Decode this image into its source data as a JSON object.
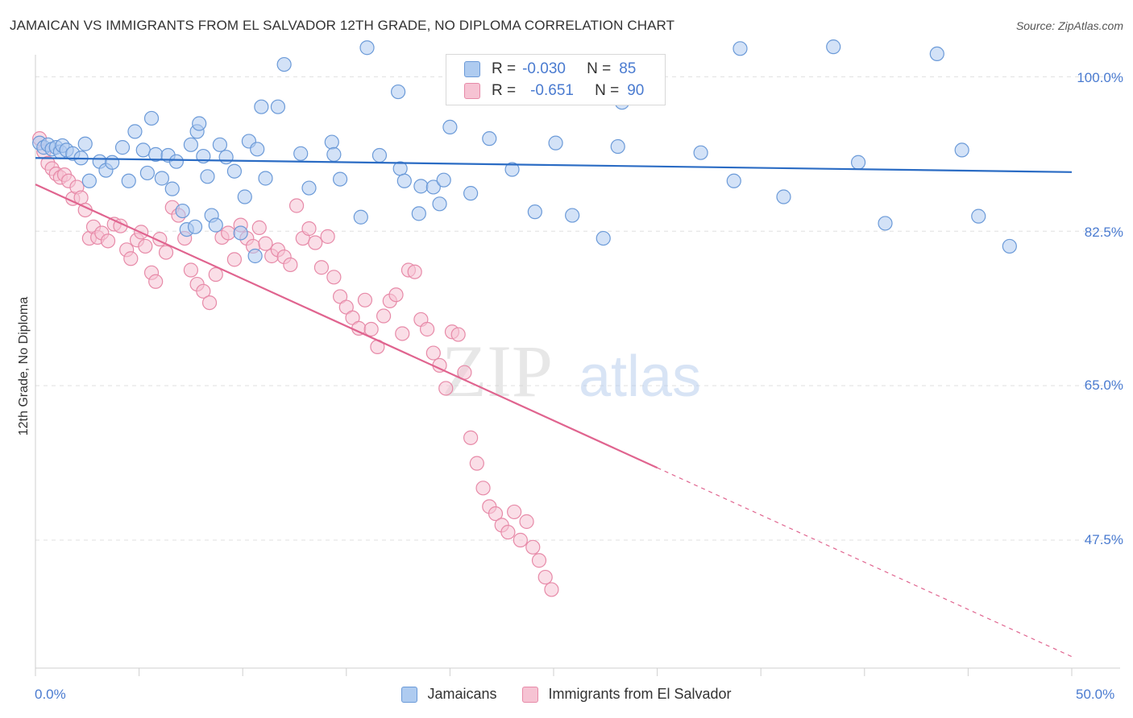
{
  "title": "JAMAICAN VS IMMIGRANTS FROM EL SALVADOR 12TH GRADE, NO DIPLOMA CORRELATION CHART",
  "source": "Source: ZipAtlas.com",
  "watermark": {
    "zip": "ZIP",
    "atlas": "atlas"
  },
  "legend": {
    "rows": [
      {
        "r_label": "R =",
        "r_value": "-0.030",
        "n_label": "N =",
        "n_value": "85"
      },
      {
        "r_label": "R =",
        "r_value": "-0.651",
        "n_label": "N =",
        "n_value": "90"
      }
    ]
  },
  "colors": {
    "blue_fill": "#aecbf0",
    "blue_stroke": "#6b9ad8",
    "blue_line": "#2b6cc4",
    "pink_fill": "#f6c3d3",
    "pink_stroke": "#e78aa8",
    "pink_line": "#e0648f",
    "grid": "#e0e0e0",
    "axis_text": "#4a7bd0"
  },
  "chart_data": {
    "type": "scatter",
    "title": "JAMAICAN VS IMMIGRANTS FROM EL SALVADOR 12TH GRADE, NO DIPLOMA CORRELATION CHART",
    "xlabel": "",
    "ylabel": "12th Grade, No Diploma",
    "xlim": [
      0,
      50
    ],
    "ylim": [
      33,
      102.5
    ],
    "x_tick_labels": [
      "0.0%",
      "50.0%"
    ],
    "y_ticks": [
      100,
      82.5,
      65,
      47.5
    ],
    "y_tick_labels": [
      "100.0%",
      "82.5%",
      "65.0%",
      "47.5%"
    ],
    "grid": true,
    "legend_position": "top-center",
    "series": [
      {
        "name": "Jamaicans",
        "r": -0.03,
        "n": 85,
        "trend": {
          "x": [
            0,
            50
          ],
          "y": [
            90.8,
            89.2
          ],
          "dashed_from": null
        },
        "points": [
          [
            0.2,
            92.5
          ],
          [
            0.4,
            92
          ],
          [
            0.6,
            92.3
          ],
          [
            0.8,
            91.8
          ],
          [
            1.0,
            92
          ],
          [
            1.2,
            91.5
          ],
          [
            1.3,
            92.2
          ],
          [
            1.5,
            91.7
          ],
          [
            1.8,
            91.3
          ],
          [
            2.2,
            90.8
          ],
          [
            2.4,
            92.4
          ],
          [
            2.6,
            88.2
          ],
          [
            3.1,
            90.4
          ],
          [
            3.4,
            89.4
          ],
          [
            3.7,
            90.3
          ],
          [
            4.2,
            92
          ],
          [
            4.5,
            88.2
          ],
          [
            4.8,
            93.8
          ],
          [
            5.2,
            91.7
          ],
          [
            5.4,
            89.1
          ],
          [
            5.6,
            95.3
          ],
          [
            5.8,
            91.2
          ],
          [
            6.1,
            88.5
          ],
          [
            6.4,
            91.1
          ],
          [
            6.6,
            87.3
          ],
          [
            6.8,
            90.4
          ],
          [
            7.1,
            84.8
          ],
          [
            7.3,
            82.7
          ],
          [
            7.5,
            92.3
          ],
          [
            7.7,
            83
          ],
          [
            7.8,
            93.8
          ],
          [
            7.9,
            94.7
          ],
          [
            8.1,
            91
          ],
          [
            8.3,
            88.7
          ],
          [
            8.5,
            84.3
          ],
          [
            8.7,
            83.2
          ],
          [
            8.9,
            92.3
          ],
          [
            9.2,
            90.9
          ],
          [
            9.6,
            89.3
          ],
          [
            9.9,
            82.3
          ],
          [
            10.1,
            86.4
          ],
          [
            10.3,
            92.7
          ],
          [
            10.6,
            79.7
          ],
          [
            10.7,
            91.8
          ],
          [
            10.9,
            96.6
          ],
          [
            11.1,
            88.5
          ],
          [
            11.7,
            96.6
          ],
          [
            12.0,
            101.4
          ],
          [
            12.8,
            91.3
          ],
          [
            13.2,
            87.4
          ],
          [
            14.3,
            92.6
          ],
          [
            14.4,
            91.2
          ],
          [
            14.7,
            88.4
          ],
          [
            15.7,
            84.1
          ],
          [
            16.0,
            103.3
          ],
          [
            16.6,
            91.1
          ],
          [
            17.5,
            98.3
          ],
          [
            17.6,
            89.6
          ],
          [
            17.8,
            88.2
          ],
          [
            18.5,
            84.5
          ],
          [
            18.6,
            87.6
          ],
          [
            19.2,
            87.5
          ],
          [
            19.5,
            85.6
          ],
          [
            19.7,
            88.3
          ],
          [
            20.0,
            94.3
          ],
          [
            21.0,
            86.8
          ],
          [
            21.9,
            93
          ],
          [
            23.0,
            89.5
          ],
          [
            24.1,
            84.7
          ],
          [
            25.1,
            92.5
          ],
          [
            25.9,
            84.3
          ],
          [
            27.4,
            81.7
          ],
          [
            28.1,
            92.1
          ],
          [
            28.3,
            97.1
          ],
          [
            32.1,
            91.4
          ],
          [
            33.7,
            88.2
          ],
          [
            34.0,
            103.2
          ],
          [
            36.1,
            86.4
          ],
          [
            38.5,
            103.4
          ],
          [
            39.7,
            90.3
          ],
          [
            41.0,
            83.4
          ],
          [
            43.5,
            102.6
          ],
          [
            44.7,
            91.7
          ],
          [
            45.5,
            84.2
          ],
          [
            47.0,
            80.8
          ]
        ]
      },
      {
        "name": "Immigrants from El Salvador",
        "r": -0.651,
        "n": 90,
        "trend": {
          "x": [
            0,
            50
          ],
          "y": [
            87.8,
            34.3
          ],
          "dashed_from": 30
        },
        "points": [
          [
            0.2,
            93
          ],
          [
            0.4,
            91.5
          ],
          [
            0.6,
            90.2
          ],
          [
            0.8,
            89.6
          ],
          [
            1.0,
            89
          ],
          [
            1.2,
            88.6
          ],
          [
            1.4,
            88.9
          ],
          [
            1.6,
            88.2
          ],
          [
            1.8,
            86.2
          ],
          [
            2.0,
            87.5
          ],
          [
            2.2,
            86.3
          ],
          [
            2.4,
            84.9
          ],
          [
            2.6,
            81.7
          ],
          [
            2.8,
            83
          ],
          [
            3.0,
            81.8
          ],
          [
            3.2,
            82.3
          ],
          [
            3.5,
            81.4
          ],
          [
            3.8,
            83.3
          ],
          [
            4.1,
            83.1
          ],
          [
            4.4,
            80.4
          ],
          [
            4.6,
            79.4
          ],
          [
            4.9,
            81.5
          ],
          [
            5.1,
            82.4
          ],
          [
            5.3,
            80.8
          ],
          [
            5.6,
            77.8
          ],
          [
            5.8,
            76.8
          ],
          [
            6.0,
            81.6
          ],
          [
            6.3,
            80.1
          ],
          [
            6.6,
            85.2
          ],
          [
            6.9,
            84.3
          ],
          [
            7.2,
            81.7
          ],
          [
            7.5,
            78.1
          ],
          [
            7.8,
            76.5
          ],
          [
            8.1,
            75.7
          ],
          [
            8.4,
            74.4
          ],
          [
            8.7,
            77.6
          ],
          [
            9.0,
            81.8
          ],
          [
            9.3,
            82.3
          ],
          [
            9.6,
            79.3
          ],
          [
            9.9,
            83.2
          ],
          [
            10.2,
            81.7
          ],
          [
            10.5,
            80.8
          ],
          [
            10.8,
            82.9
          ],
          [
            11.1,
            81.1
          ],
          [
            11.4,
            79.7
          ],
          [
            11.7,
            80.4
          ],
          [
            12.0,
            79.6
          ],
          [
            12.3,
            78.7
          ],
          [
            12.6,
            85.4
          ],
          [
            12.9,
            81.7
          ],
          [
            13.2,
            82.8
          ],
          [
            13.5,
            81.2
          ],
          [
            13.8,
            78.4
          ],
          [
            14.1,
            81.9
          ],
          [
            14.4,
            77.3
          ],
          [
            14.7,
            75.1
          ],
          [
            15.0,
            73.9
          ],
          [
            15.3,
            72.7
          ],
          [
            15.6,
            71.5
          ],
          [
            15.9,
            74.7
          ],
          [
            16.2,
            71.4
          ],
          [
            16.5,
            69.4
          ],
          [
            16.8,
            72.9
          ],
          [
            17.1,
            74.6
          ],
          [
            17.4,
            75.3
          ],
          [
            17.7,
            70.9
          ],
          [
            18.0,
            78.1
          ],
          [
            18.3,
            77.9
          ],
          [
            18.6,
            72.5
          ],
          [
            18.9,
            71.4
          ],
          [
            19.2,
            68.7
          ],
          [
            19.5,
            67.3
          ],
          [
            19.8,
            64.7
          ],
          [
            20.1,
            71.1
          ],
          [
            20.4,
            70.8
          ],
          [
            20.7,
            66.5
          ],
          [
            21.0,
            59.1
          ],
          [
            21.3,
            56.2
          ],
          [
            21.6,
            53.4
          ],
          [
            21.9,
            51.3
          ],
          [
            22.2,
            50.5
          ],
          [
            22.5,
            49.2
          ],
          [
            22.8,
            48.4
          ],
          [
            23.1,
            50.7
          ],
          [
            23.4,
            47.5
          ],
          [
            23.7,
            49.6
          ],
          [
            24.0,
            46.7
          ],
          [
            24.3,
            45.2
          ],
          [
            24.6,
            43.3
          ],
          [
            24.9,
            41.9
          ]
        ]
      }
    ]
  },
  "bottom_legend": [
    {
      "label": "Jamaicans"
    },
    {
      "label": "Immigrants from El Salvador"
    }
  ]
}
